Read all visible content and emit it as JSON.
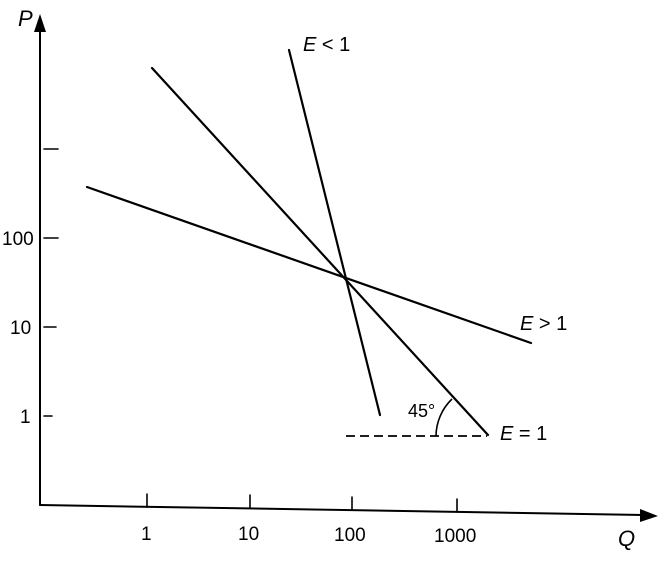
{
  "diagram": {
    "axes": {
      "y_title": "P",
      "x_title": "Q",
      "y_tick_labels": [
        "100",
        "10",
        "1"
      ],
      "x_tick_labels": [
        "1",
        "10",
        "100",
        "1000"
      ]
    },
    "lines": [
      {
        "label_var": "E",
        "label_rel": "< 1"
      },
      {
        "label_var": "E",
        "label_rel": "> 1"
      },
      {
        "label_var": "E",
        "label_rel": "= 1"
      }
    ],
    "angle_label": "45°",
    "colors": {
      "ink": "#000000",
      "background": "#ffffff"
    }
  }
}
